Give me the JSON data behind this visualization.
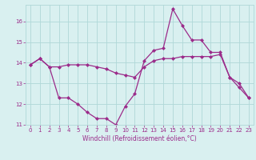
{
  "line1_x": [
    0,
    1,
    2,
    3,
    4,
    5,
    6,
    7,
    8,
    9,
    10,
    11,
    12,
    13,
    14,
    15,
    16,
    17,
    18,
    19,
    20,
    21,
    22,
    23
  ],
  "line1_y": [
    13.9,
    14.2,
    13.8,
    12.3,
    12.3,
    12.0,
    11.6,
    11.3,
    11.3,
    11.0,
    11.9,
    12.5,
    14.1,
    14.6,
    14.7,
    16.6,
    15.8,
    15.1,
    15.1,
    14.5,
    14.5,
    13.3,
    12.8,
    12.3
  ],
  "line2_x": [
    0,
    1,
    2,
    3,
    4,
    5,
    6,
    7,
    8,
    9,
    10,
    11,
    12,
    13,
    14,
    15,
    16,
    17,
    18,
    19,
    20,
    21,
    22,
    23
  ],
  "line2_y": [
    13.9,
    14.2,
    13.8,
    13.8,
    13.9,
    13.9,
    13.9,
    13.8,
    13.7,
    13.5,
    13.4,
    13.3,
    13.8,
    14.1,
    14.2,
    14.2,
    14.3,
    14.3,
    14.3,
    14.3,
    14.4,
    13.3,
    13.0,
    12.3
  ],
  "line_color": "#9b2b8a",
  "bg_color": "#d9f0f0",
  "grid_color": "#b0d8d8",
  "xlabel": "Windchill (Refroidissement éolien,°C)",
  "ylim": [
    11.0,
    16.8
  ],
  "xlim": [
    -0.5,
    23.5
  ],
  "yticks": [
    11,
    12,
    13,
    14,
    15,
    16
  ],
  "xticks": [
    0,
    1,
    2,
    3,
    4,
    5,
    6,
    7,
    8,
    9,
    10,
    11,
    12,
    13,
    14,
    15,
    16,
    17,
    18,
    19,
    20,
    21,
    22,
    23
  ],
  "marker": "D",
  "markersize": 2.0,
  "linewidth": 0.9,
  "tick_fontsize": 5.0,
  "xlabel_fontsize": 5.5
}
